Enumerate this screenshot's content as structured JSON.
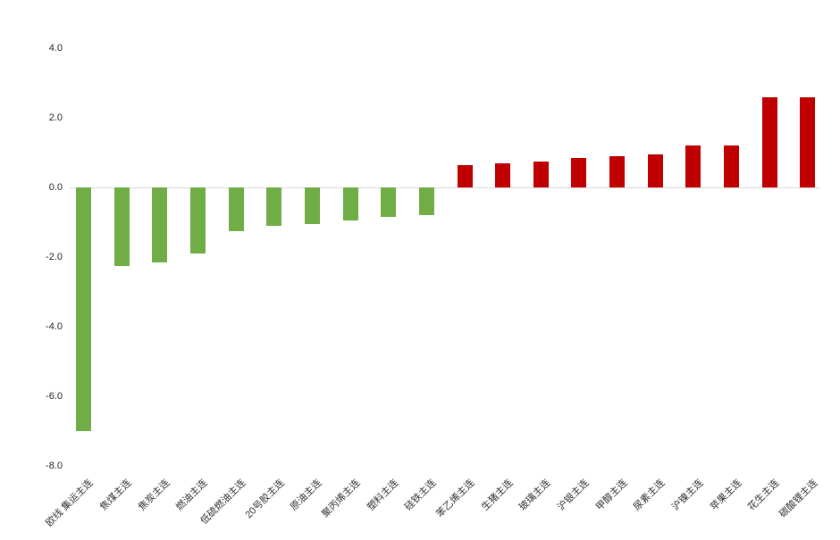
{
  "chart_data": {
    "type": "bar",
    "title": "",
    "xlabel": "",
    "ylabel": "",
    "legend": "none",
    "grid": "zero-baseline-only",
    "ylim": [
      -8.0,
      4.0
    ],
    "ytick_labels": [
      "4.0",
      "2.0",
      "0.0",
      "-2.0",
      "-4.0",
      "-6.0",
      "-8.0"
    ],
    "yticks": [
      4.0,
      2.0,
      0.0,
      -2.0,
      -4.0,
      -6.0,
      -8.0
    ],
    "categories": [
      "欧线 集运主连",
      "焦煤主连",
      "焦炭主连",
      "燃油主连",
      "低硫燃油主连",
      "20号胶主连",
      "原油主连",
      "聚丙烯主连",
      "塑料主连",
      "硅铁主连",
      "苯乙烯主连",
      "生猪主连",
      "玻璃主连",
      "沪银主连",
      "甲醇主连",
      "尿素主连",
      "沪镍主连",
      "苹果主连",
      "花生主连",
      "碳酸锂主连"
    ],
    "values": [
      -7.0,
      -2.25,
      -2.15,
      -1.9,
      -1.25,
      -1.1,
      -1.05,
      -0.95,
      -0.85,
      -0.8,
      0.65,
      0.7,
      0.75,
      0.85,
      0.9,
      0.95,
      1.2,
      1.2,
      2.6,
      2.6
    ],
    "colors": {
      "positive_bar": "#C00000",
      "negative_bar": "#70AD47",
      "baseline": "#D9D9D9",
      "tick_text": "#262626"
    }
  }
}
